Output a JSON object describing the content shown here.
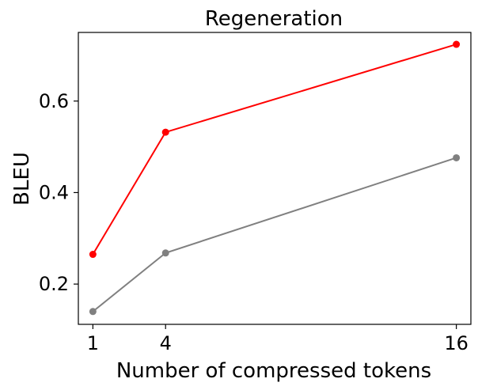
{
  "chart_data": {
    "type": "line",
    "title": "Regeneration",
    "xlabel": "Number of compressed tokens",
    "ylabel": "BLEU",
    "x": [
      1,
      4,
      16
    ],
    "xticks": [
      "1",
      "4",
      "16"
    ],
    "yticks": [
      "0.2",
      "0.4",
      "0.6"
    ],
    "xlim": [
      0.4,
      16.6
    ],
    "ylim": [
      0.112,
      0.75
    ],
    "grid": false,
    "series": [
      {
        "color": "#ff0000",
        "values": [
          0.265,
          0.532,
          0.724
        ]
      },
      {
        "color": "#808080",
        "values": [
          0.14,
          0.268,
          0.476
        ]
      }
    ]
  }
}
